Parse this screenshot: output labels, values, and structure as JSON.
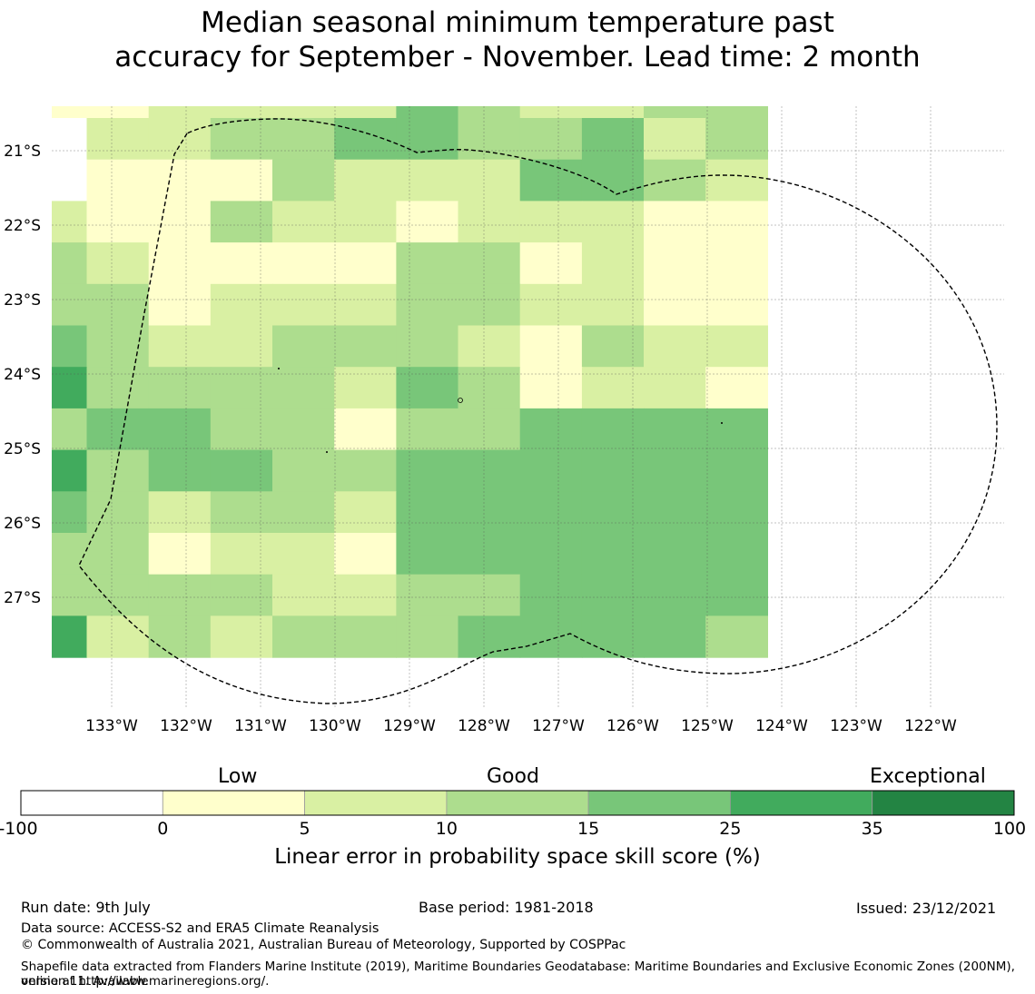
{
  "title": {
    "line1": "Median seasonal minimum temperature past",
    "line2": "accuracy for September - November. Lead time: 2 month"
  },
  "map": {
    "lat_labels": [
      "21°S",
      "22°S",
      "23°S",
      "24°S",
      "25°S",
      "26°S",
      "27°S"
    ],
    "lon_labels": [
      "133°W",
      "132°W",
      "131°W",
      "130°W",
      "129°W",
      "128°W",
      "127°W",
      "126°W",
      "125°W",
      "124°W",
      "123°W",
      "122°W"
    ],
    "boundary_style": "dashed black outline (EEZ)",
    "grid_rows": [
      "112222432233",
      "022334433423",
      "011132224432",
      "211322122211",
      "321111331211",
      "331222332211",
      "432233321322",
      "533332431221",
      "344331334444",
      "534433444444",
      "432332444444",
      "331221444444",
      "333322334444",
      "523233344443"
    ]
  },
  "legend": {
    "categories": [
      "Low",
      "Good",
      "Exceptional"
    ],
    "ticks": [
      "-100",
      "0",
      "5",
      "10",
      "15",
      "25",
      "35",
      "100"
    ],
    "colors": [
      "#ffffff",
      "#ffffcc",
      "#d9f0a3",
      "#addd8e",
      "#78c679",
      "#41ab5d",
      "#238443"
    ],
    "label": "Linear error in probability space skill score (%)"
  },
  "footer": {
    "run_date": "Run date: 9th July",
    "base_period": "Base period: 1981-2018",
    "issued": "Issued: 23/12/2021",
    "data_source": "Data source: ACCESS-S2 and ERA5 Climate Reanalysis",
    "copyright": "© Commonwealth of Australia 2021, Australian Bureau of Meteorology, Supported by COSPPac",
    "shapefile_line1": "Shapefile data extracted from Flanders Marine Institute (2019), Maritime Boundaries Geodatabase: Maritime Boundaries and Exclusive Economic Zones (200NM), version 11. Available",
    "shapefile_line2": "online at http://www.marineregions.org/."
  }
}
